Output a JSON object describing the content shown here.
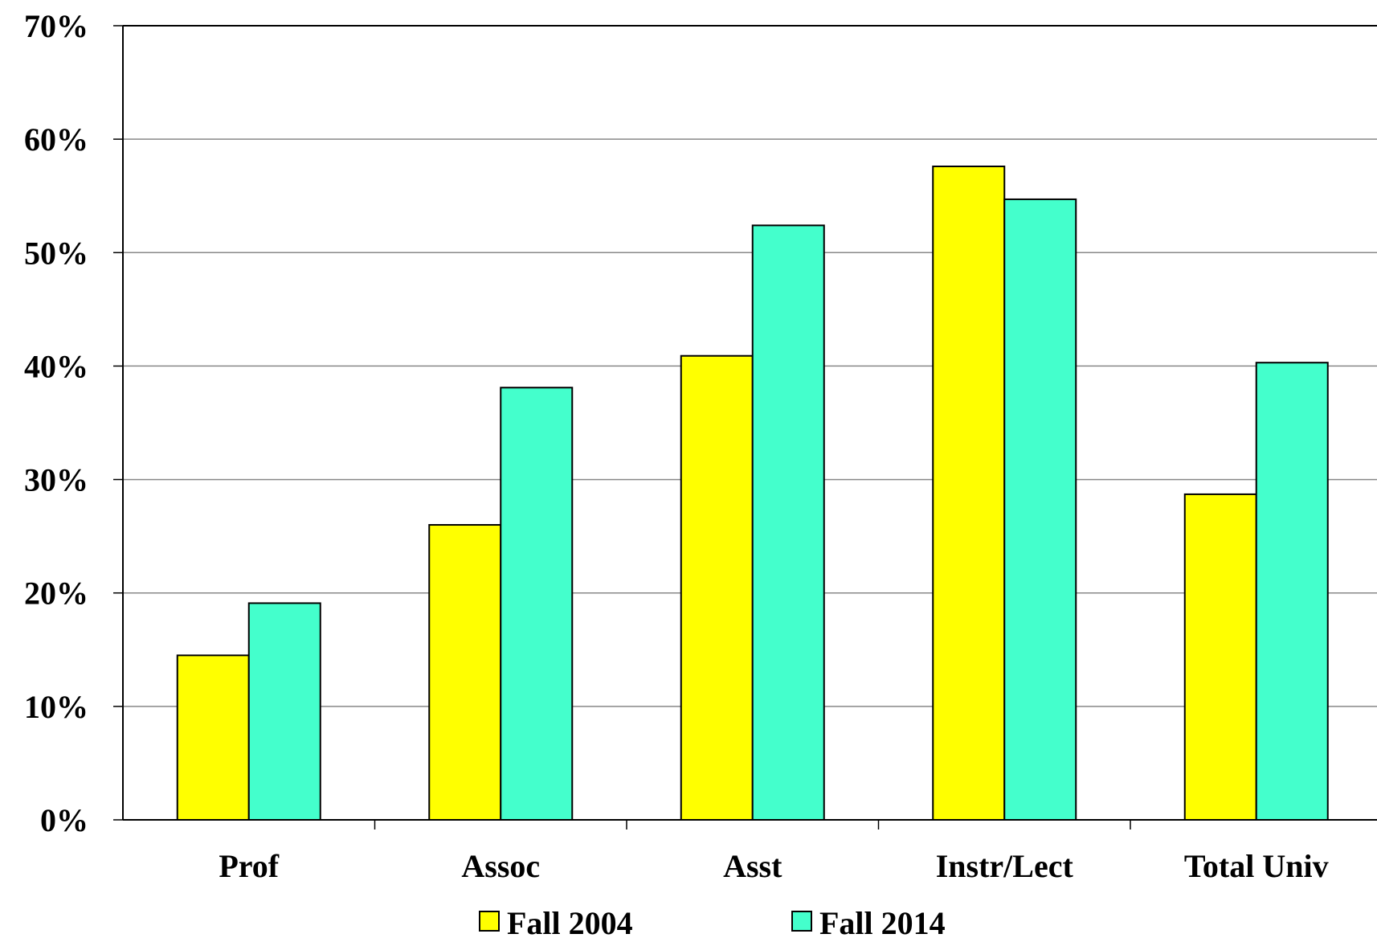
{
  "chart_data": {
    "type": "bar",
    "categories": [
      "Prof",
      "Assoc",
      "Asst",
      "Instr/Lect",
      "Total Univ"
    ],
    "series": [
      {
        "name": "Fall 2004",
        "values": [
          14.5,
          26.0,
          40.9,
          57.6,
          28.7
        ],
        "color": "#ffff00"
      },
      {
        "name": "Fall 2014",
        "values": [
          19.1,
          38.1,
          52.4,
          54.7,
          40.3
        ],
        "color": "#44ffcc"
      }
    ],
    "y_ticks": [
      "0%",
      "10%",
      "20%",
      "30%",
      "40%",
      "50%",
      "60%",
      "70%"
    ],
    "ylim": [
      0,
      70
    ],
    "y_unit": "%",
    "grid": true,
    "legend_position": "bottom",
    "bar_edge_color": "#000000",
    "grid_color": "#888888"
  }
}
